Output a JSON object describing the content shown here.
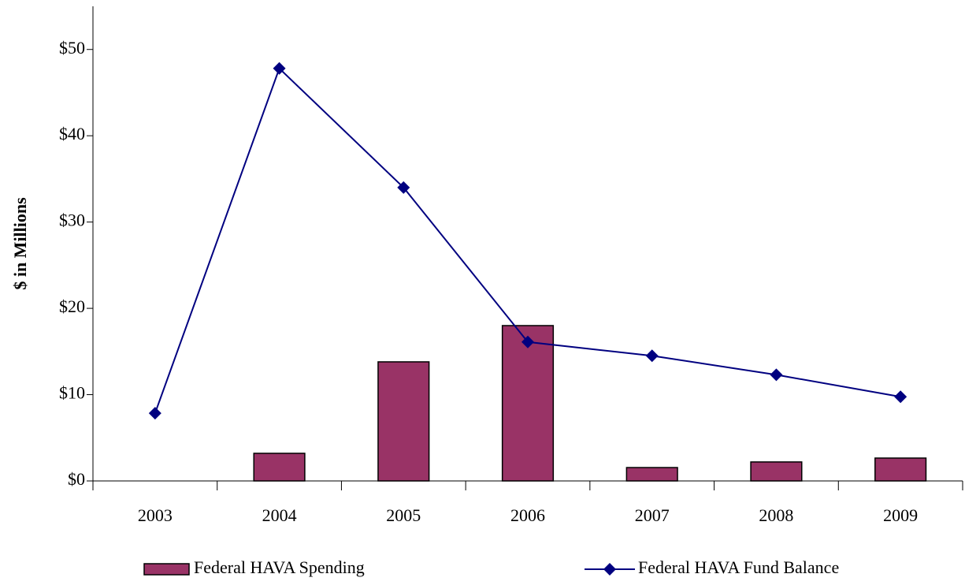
{
  "chart_data": {
    "type": "combo",
    "y_label": "$ in Millions",
    "categories": [
      "2003",
      "2004",
      "2005",
      "2006",
      "2007",
      "2008",
      "2009"
    ],
    "series": [
      {
        "name": "Federal HAVA Spending",
        "type": "bar",
        "color": "#993366",
        "values": [
          null,
          3.2,
          13.8,
          18.0,
          1.55,
          2.2,
          2.65
        ]
      },
      {
        "name": "Federal HAVA Fund Balance",
        "type": "line",
        "color": "#000080",
        "values": [
          7.85,
          47.8,
          34.0,
          16.1,
          14.5,
          12.3,
          9.75
        ]
      }
    ],
    "ylim": [
      0,
      55
    ],
    "yticks": [
      {
        "value": 0,
        "label": "$0"
      },
      {
        "value": 10,
        "label": "$10"
      },
      {
        "value": 20,
        "label": "$20"
      },
      {
        "value": 30,
        "label": "$30"
      },
      {
        "value": 40,
        "label": "$40"
      },
      {
        "value": 50,
        "label": "$50"
      }
    ],
    "grid": false,
    "legend": "bottom"
  }
}
